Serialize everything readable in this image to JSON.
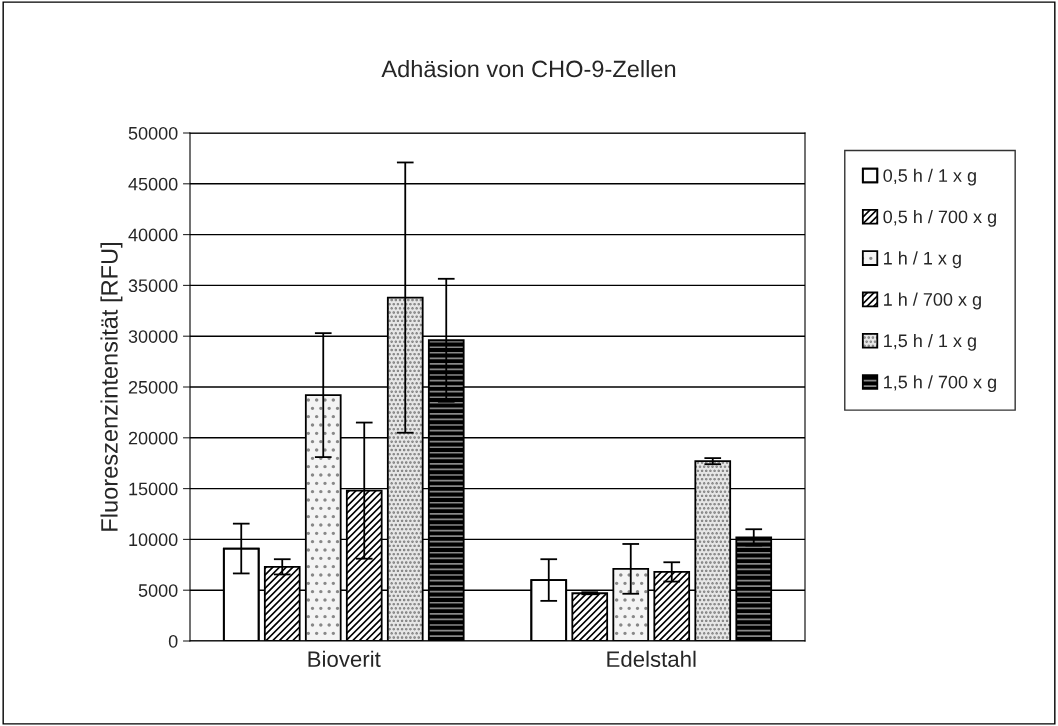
{
  "chart_data": {
    "type": "bar",
    "title": "Adhäsion von CHO-9-Zellen",
    "ylabel": "Fluoreszenzintensität [RFU]",
    "categories": [
      "Bioverit",
      "Edelstahl"
    ],
    "series": [
      {
        "name": "0,5 h / 1 x g",
        "color": "#ffffff",
        "values": [
          9100,
          6000
        ],
        "errors": [
          2450,
          2050
        ]
      },
      {
        "name": "0,5 h / 700 x g",
        "color": "#ffffff",
        "values": [
          7300,
          4700
        ],
        "errors": [
          750,
          100
        ]
      },
      {
        "name": "1 h / 1 x g",
        "color": "#f4f4f4",
        "values": [
          24200,
          7100
        ],
        "errors": [
          6100,
          2450
        ]
      },
      {
        "name": "1 h / 700 x g",
        "color": "#ffffff",
        "values": [
          14800,
          6800
        ],
        "errors": [
          6700,
          950
        ]
      },
      {
        "name": "1,5 h / 1 x g",
        "color": "#e6e6e6",
        "values": [
          33800,
          17700
        ],
        "errors": [
          13300,
          300
        ]
      },
      {
        "name": "1,5 h / 700 x g",
        "color": "#000000",
        "values": [
          29600,
          10200
        ],
        "errors": [
          6050,
          800
        ]
      }
    ],
    "ylim": [
      0,
      50000
    ],
    "yticks": [
      0,
      5000,
      10000,
      15000,
      20000,
      25000,
      30000,
      35000,
      40000,
      45000,
      50000
    ],
    "grid": "y",
    "legend": "right"
  }
}
